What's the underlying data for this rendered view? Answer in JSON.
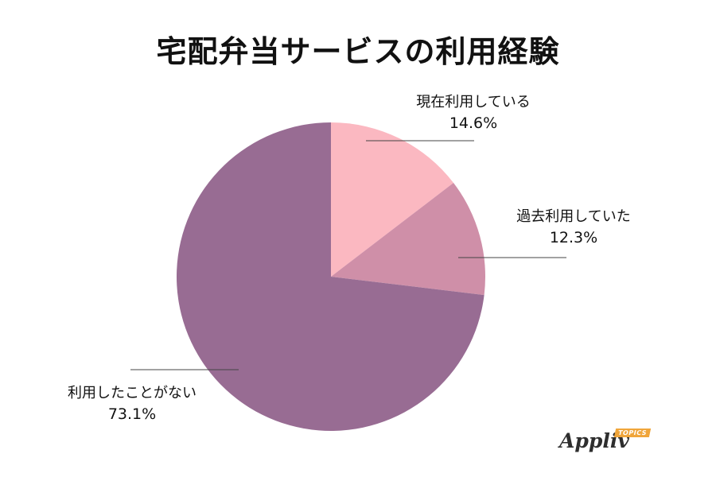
{
  "chart_data": {
    "type": "pie",
    "title": "宅配弁当サービスの利用経験",
    "start_angle_deg": 0,
    "direction": "clockwise",
    "slices": [
      {
        "label": "現在利用している",
        "value": 14.6,
        "value_label": "14.6%",
        "color": "#fbb8c1"
      },
      {
        "label": "過去利用していた",
        "value": 12.3,
        "value_label": "12.3%",
        "color": "#cf8fa8"
      },
      {
        "label": "利用したことがない",
        "value": 73.1,
        "value_label": "73.1%",
        "color": "#986c93"
      }
    ]
  },
  "logo": {
    "text": "Appliv",
    "tag": "TOPICS"
  }
}
